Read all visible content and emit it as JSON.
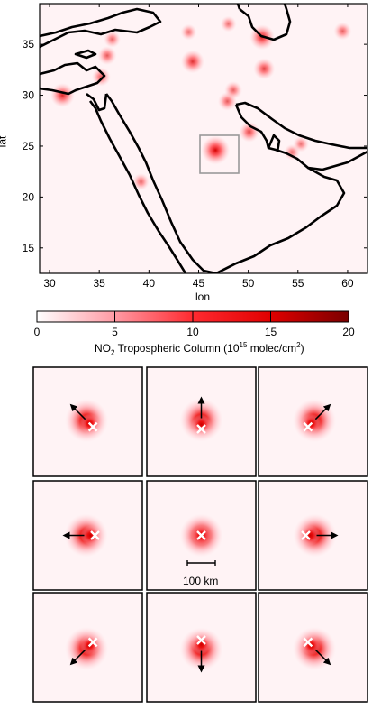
{
  "chart_data": [
    {
      "type": "heatmap",
      "panel": "map",
      "title": "",
      "xlabel": "lon",
      "ylabel": "lat",
      "xlim": [
        29,
        62
      ],
      "ylim": [
        12.5,
        39
      ],
      "xticks": [
        30,
        35,
        40,
        45,
        50,
        55,
        60
      ],
      "yticks": [
        15,
        20,
        25,
        30,
        35
      ],
      "highlight_box": {
        "lon": [
          44.5,
          48.5
        ],
        "lat": [
          22.5,
          26.5
        ]
      },
      "hotspots": [
        {
          "lon": 46.7,
          "lat": 24.6,
          "intensity": 1.0
        },
        {
          "lon": 31.3,
          "lat": 30.0,
          "intensity": 0.75
        },
        {
          "lon": 35.2,
          "lat": 31.8,
          "intensity": 0.45
        },
        {
          "lon": 35.8,
          "lat": 33.9,
          "intensity": 0.45
        },
        {
          "lon": 36.3,
          "lat": 35.5,
          "intensity": 0.35
        },
        {
          "lon": 44.4,
          "lat": 33.3,
          "intensity": 0.7
        },
        {
          "lon": 51.4,
          "lat": 35.7,
          "intensity": 0.8
        },
        {
          "lon": 51.6,
          "lat": 32.6,
          "intensity": 0.6
        },
        {
          "lon": 50.1,
          "lat": 26.4,
          "intensity": 0.55
        },
        {
          "lon": 47.9,
          "lat": 29.4,
          "intensity": 0.45
        },
        {
          "lon": 48.5,
          "lat": 30.5,
          "intensity": 0.4
        },
        {
          "lon": 39.2,
          "lat": 21.5,
          "intensity": 0.35
        },
        {
          "lon": 59.5,
          "lat": 36.3,
          "intensity": 0.4
        },
        {
          "lon": 54.4,
          "lat": 24.4,
          "intensity": 0.3
        },
        {
          "lon": 55.3,
          "lat": 25.2,
          "intensity": 0.3
        },
        {
          "lon": 48.0,
          "lat": 37.0,
          "intensity": 0.3
        },
        {
          "lon": 44.0,
          "lat": 36.2,
          "intensity": 0.3
        }
      ]
    },
    {
      "type": "colorbar",
      "vmin": 0,
      "vmax": 20,
      "ticks": [
        0,
        5,
        10,
        15,
        20
      ],
      "label_prefix": "NO",
      "label_sub": "2",
      "label_mid": " Tropospheric Column (10",
      "label_sup": "15",
      "label_unit": " molec/cm",
      "label_sup2": "2",
      "label_end": ")",
      "colors": [
        "#ffffff",
        "#ff9aa4",
        "#ff2a30",
        "#e00000",
        "#7a0000"
      ]
    },
    {
      "type": "heatmap",
      "panel": "wind-rotation-grid",
      "scale_bar_label": "100 km",
      "panels": [
        {
          "direction": "northwest",
          "arrow_deg": 135
        },
        {
          "direction": "north",
          "arrow_deg": 90
        },
        {
          "direction": "northeast",
          "arrow_deg": 45
        },
        {
          "direction": "west",
          "arrow_deg": 180
        },
        {
          "direction": "calm",
          "arrow_deg": null
        },
        {
          "direction": "east",
          "arrow_deg": 0
        },
        {
          "direction": "southwest",
          "arrow_deg": 225
        },
        {
          "direction": "south",
          "arrow_deg": 270
        },
        {
          "direction": "southeast",
          "arrow_deg": 315
        }
      ]
    }
  ],
  "map_labels": {
    "xlabel": "lon",
    "ylabel": "lat",
    "xticks": [
      "30",
      "35",
      "40",
      "45",
      "50",
      "55",
      "60"
    ],
    "yticks": [
      "15",
      "20",
      "25",
      "30",
      "35"
    ]
  },
  "colorbar_labels": {
    "ticks": [
      "0",
      "5",
      "10",
      "15",
      "20"
    ]
  },
  "scale_bar": {
    "label": "100 km"
  }
}
